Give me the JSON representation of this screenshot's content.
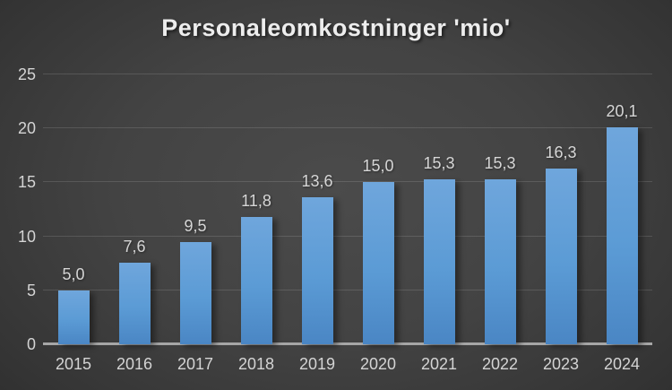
{
  "chart": {
    "title": "Personaleomkostninger 'mio'"
  },
  "chart_data": {
    "type": "bar",
    "title": "Personaleomkostninger 'mio'",
    "categories": [
      "2015",
      "2016",
      "2017",
      "2018",
      "2019",
      "2020",
      "2021",
      "2022",
      "2023",
      "2024"
    ],
    "values": [
      5.0,
      7.6,
      9.5,
      11.8,
      13.6,
      15.0,
      15.3,
      15.3,
      16.3,
      20.1
    ],
    "value_labels": [
      "5,0",
      "7,6",
      "9,5",
      "11,8",
      "13,6",
      "15,0",
      "15,3",
      "15,3",
      "16,3",
      "20,1"
    ],
    "xlabel": "",
    "ylabel": "",
    "ylim": [
      0,
      25
    ],
    "y_ticks": [
      0,
      5,
      10,
      15,
      20,
      25
    ],
    "grid": true,
    "legend": false,
    "colors": {
      "bar_top": "#6fa6dc",
      "bar_mid": "#5b9bd5",
      "bar_bottom": "#4a86c4",
      "axis_line": "#a6a6a6",
      "tick_text": "#d4d4d4",
      "title_text": "#ededed",
      "background_center": "#4b4b4b",
      "background_edge": "#272727"
    }
  }
}
